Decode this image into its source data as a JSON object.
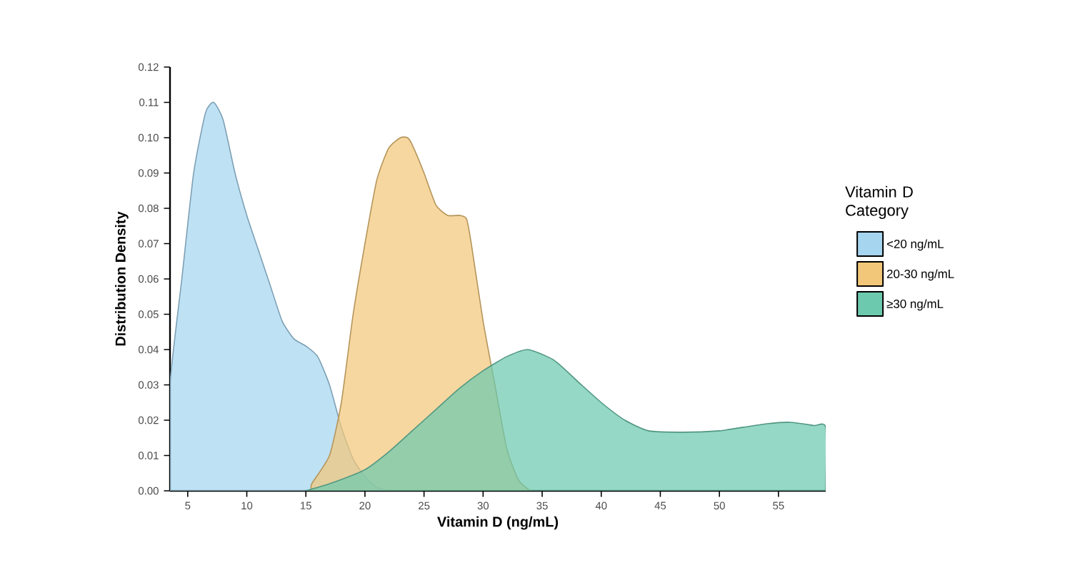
{
  "chart_data": {
    "type": "area",
    "xlabel": "Vitamin D (ng/mL)",
    "ylabel": "Distribution Density",
    "legend_title": "Vitamin D Category",
    "legend": "right",
    "grid": false,
    "xlim": [
      3.5,
      59
    ],
    "ylim": [
      0,
      0.12
    ],
    "xticks": [
      5,
      10,
      15,
      20,
      25,
      30,
      35,
      40,
      45,
      50,
      55
    ],
    "yticks": [
      {
        "value": 0,
        "label": "0.00"
      },
      0.01,
      0.02,
      0.03,
      0.04,
      0.05,
      0.06,
      0.07,
      0.08,
      0.09,
      {
        "value": 0.1,
        "label": "0.10"
      },
      0.11,
      0.12
    ],
    "series": [
      {
        "name": "<20 ng/mL",
        "color": "#a6d5f0",
        "x": [
          3.5,
          4.5,
          5.5,
          6.5,
          7.2,
          8,
          9,
          10,
          11,
          12,
          13,
          14,
          15,
          16,
          17,
          18,
          19,
          20,
          21,
          22
        ],
        "values": [
          0.03,
          0.06,
          0.09,
          0.107,
          0.11,
          0.105,
          0.09,
          0.078,
          0.068,
          0.058,
          0.048,
          0.043,
          0.041,
          0.038,
          0.03,
          0.018,
          0.009,
          0.004,
          0.001,
          0
        ]
      },
      {
        "name": "20-30 ng/mL",
        "color": "#f2c77a",
        "x": [
          15.5,
          17,
          18,
          19,
          20,
          21,
          22,
          23,
          23.6,
          24,
          25,
          26,
          27,
          28,
          28.6,
          29,
          30,
          31,
          32,
          33,
          34
        ],
        "values": [
          0.002,
          0.01,
          0.025,
          0.05,
          0.07,
          0.088,
          0.097,
          0.1,
          0.1,
          0.098,
          0.09,
          0.081,
          0.078,
          0.078,
          0.077,
          0.07,
          0.048,
          0.03,
          0.012,
          0.003,
          0
        ]
      },
      {
        "name": "≥30 ng/mL",
        "color": "#6cc9ae",
        "x": [
          15,
          17,
          20,
          22,
          24,
          26,
          28,
          30,
          32,
          33.8,
          36,
          38,
          40,
          42,
          44,
          47,
          50,
          52,
          54,
          56,
          58,
          59
        ],
        "values": [
          0,
          0.002,
          0.006,
          0.011,
          0.017,
          0.023,
          0.029,
          0.034,
          0.038,
          0.04,
          0.037,
          0.031,
          0.025,
          0.02,
          0.017,
          0.0166,
          0.017,
          0.018,
          0.019,
          0.0194,
          0.0185,
          0.018
        ]
      }
    ]
  }
}
